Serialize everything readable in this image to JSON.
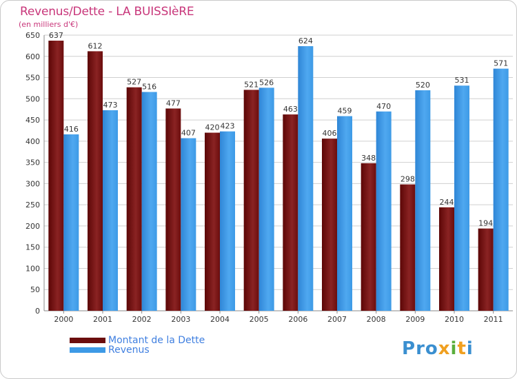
{
  "title": "Revenus/Dette - LA BUISSIèRE",
  "subtitle": "(en milliers d'€)",
  "logo": "Proxiti",
  "colors": {
    "dette": "#6b0d0d",
    "revenus": "#3d9ae6",
    "grid": "#cfcfcf",
    "title": "#c8367a"
  },
  "chart_data": {
    "type": "bar",
    "title": "Revenus/Dette - LA BUISSIèRE",
    "ylabel": "(en milliers d'€)",
    "xlabel": "",
    "ylim": [
      0,
      650
    ],
    "yticks": [
      0,
      50,
      100,
      150,
      200,
      250,
      300,
      350,
      400,
      450,
      500,
      550,
      600,
      650
    ],
    "grid": true,
    "legend_position": "bottom-left",
    "categories": [
      "2000",
      "2001",
      "2002",
      "2003",
      "2004",
      "2005",
      "2006",
      "2007",
      "2008",
      "2009",
      "2010",
      "2011"
    ],
    "series": [
      {
        "name": "Montant de la Dette",
        "values": [
          637,
          612,
          527,
          477,
          420,
          521,
          463,
          406,
          348,
          298,
          244,
          194
        ]
      },
      {
        "name": "Revenus",
        "values": [
          416,
          473,
          516,
          407,
          423,
          526,
          624,
          459,
          470,
          520,
          531,
          571
        ]
      }
    ]
  }
}
